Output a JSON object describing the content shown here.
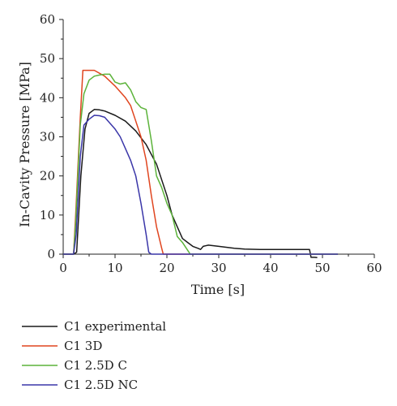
{
  "chart_data": {
    "type": "line",
    "xlabel": "Time [s]",
    "ylabel": "In-Cavity Pressure [MPa]",
    "xlim": [
      0,
      60
    ],
    "ylim": [
      0,
      60
    ],
    "xticks": [
      0,
      10,
      20,
      30,
      40,
      50,
      60
    ],
    "yticks": [
      0,
      10,
      20,
      30,
      40,
      50,
      60
    ],
    "grid": false,
    "legend_position": "bottom-left, below plot",
    "series": [
      {
        "name": "C1 experimental",
        "color": "#1a1a1a",
        "points": [
          [
            0,
            0
          ],
          [
            2,
            0
          ],
          [
            2.6,
            0.5
          ],
          [
            3.4,
            20
          ],
          [
            4.2,
            32
          ],
          [
            5,
            36
          ],
          [
            6,
            37
          ],
          [
            7,
            36.9
          ],
          [
            8,
            36.6
          ],
          [
            10,
            35.5
          ],
          [
            12,
            34
          ],
          [
            14,
            31.5
          ],
          [
            16,
            28
          ],
          [
            18,
            23
          ],
          [
            20,
            15
          ],
          [
            21,
            10
          ],
          [
            22,
            7
          ],
          [
            23,
            4
          ],
          [
            24,
            3
          ],
          [
            25,
            2
          ],
          [
            26,
            1.5
          ],
          [
            26.5,
            1.2
          ],
          [
            27,
            2
          ],
          [
            28,
            2.3
          ],
          [
            30,
            2
          ],
          [
            33,
            1.5
          ],
          [
            35,
            1.3
          ],
          [
            38,
            1.2
          ],
          [
            40,
            1.2
          ],
          [
            44,
            1.2
          ],
          [
            47.5,
            1.2
          ],
          [
            47.8,
            -0.8
          ],
          [
            48.5,
            -0.8
          ],
          [
            49,
            -0.9
          ]
        ]
      },
      {
        "name": "C1 3D",
        "color": "#e0451f",
        "points": [
          [
            0,
            0
          ],
          [
            2,
            0
          ],
          [
            2.4,
            10
          ],
          [
            3.3,
            35
          ],
          [
            3.8,
            47
          ],
          [
            4.5,
            47
          ],
          [
            6,
            47
          ],
          [
            8,
            45.5
          ],
          [
            10,
            43
          ],
          [
            12,
            40
          ],
          [
            13,
            38
          ],
          [
            14,
            34
          ],
          [
            15,
            30
          ],
          [
            16,
            24
          ],
          [
            17,
            15
          ],
          [
            18,
            7
          ],
          [
            19,
            1.5
          ],
          [
            19.3,
            0
          ],
          [
            53,
            0
          ]
        ]
      },
      {
        "name": "C1 2.5D C",
        "color": "#5cb33a",
        "points": [
          [
            0,
            0
          ],
          [
            2,
            0
          ],
          [
            2.4,
            8
          ],
          [
            3.3,
            33
          ],
          [
            4,
            41
          ],
          [
            5,
            44.5
          ],
          [
            6,
            45.5
          ],
          [
            7,
            45.8
          ],
          [
            8,
            46
          ],
          [
            9,
            46
          ],
          [
            10,
            44
          ],
          [
            11,
            43.5
          ],
          [
            12,
            43.8
          ],
          [
            13,
            42
          ],
          [
            14,
            39
          ],
          [
            15,
            37.5
          ],
          [
            16,
            37
          ],
          [
            17,
            29
          ],
          [
            18,
            20
          ],
          [
            19,
            17
          ],
          [
            20,
            13
          ],
          [
            21,
            10
          ],
          [
            22,
            4.5
          ],
          [
            23,
            3
          ],
          [
            24,
            1
          ],
          [
            24.5,
            0
          ],
          [
            53,
            0
          ]
        ]
      },
      {
        "name": "C1 2.5D NC",
        "color": "#3a36a8",
        "points": [
          [
            0,
            0
          ],
          [
            2,
            0
          ],
          [
            2.5,
            5
          ],
          [
            3.3,
            25
          ],
          [
            4,
            33
          ],
          [
            5,
            34.5
          ],
          [
            6,
            35.5
          ],
          [
            7,
            35.4
          ],
          [
            8,
            35
          ],
          [
            9,
            33.5
          ],
          [
            10,
            32
          ],
          [
            11,
            30
          ],
          [
            12,
            27
          ],
          [
            13,
            24
          ],
          [
            14,
            20
          ],
          [
            15,
            13
          ],
          [
            16,
            5
          ],
          [
            16.5,
            0.5
          ],
          [
            17,
            0
          ],
          [
            53,
            0
          ]
        ]
      }
    ]
  }
}
